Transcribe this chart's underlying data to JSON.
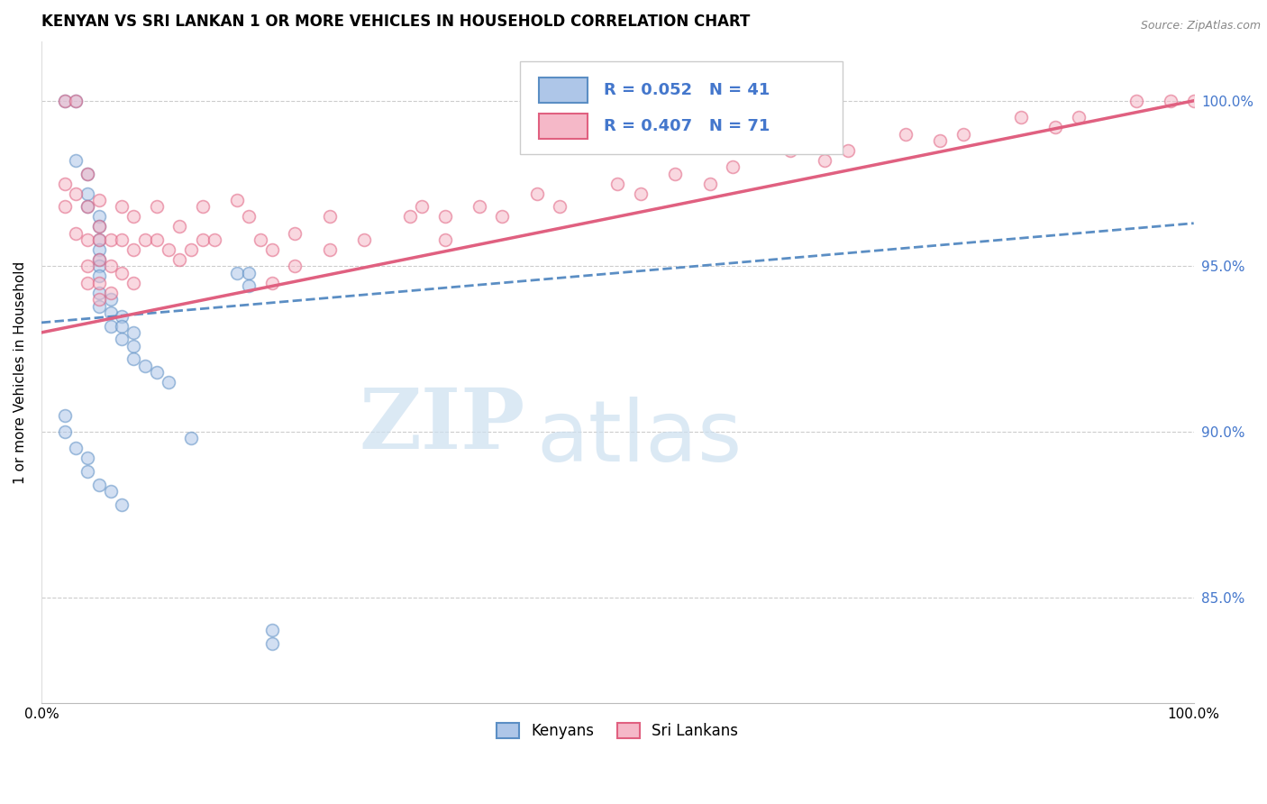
{
  "title": "KENYAN VS SRI LANKAN 1 OR MORE VEHICLES IN HOUSEHOLD CORRELATION CHART",
  "source": "Source: ZipAtlas.com",
  "ylabel": "1 or more Vehicles in Household",
  "xlim": [
    0.0,
    1.0
  ],
  "ylim": [
    0.818,
    1.018
  ],
  "yticks": [
    0.85,
    0.9,
    0.95,
    1.0
  ],
  "ytick_labels": [
    "85.0%",
    "90.0%",
    "95.0%",
    "100.0%"
  ],
  "xtick_labels": [
    "0.0%",
    "100.0%"
  ],
  "legend_r_blue": "R = 0.052",
  "legend_n_blue": "N = 41",
  "legend_r_pink": "R = 0.407",
  "legend_n_pink": "N = 71",
  "watermark_zip": "ZIP",
  "watermark_atlas": "atlas",
  "blue_color": "#aec6e8",
  "pink_color": "#f5b8c8",
  "blue_edge_color": "#5b8ec4",
  "pink_edge_color": "#e06080",
  "blue_line_color": "#5b8ec4",
  "pink_line_color": "#e06080",
  "blue_scatter_x": [
    0.02,
    0.03,
    0.03,
    0.04,
    0.04,
    0.04,
    0.05,
    0.05,
    0.05,
    0.05,
    0.05,
    0.05,
    0.05,
    0.05,
    0.05,
    0.06,
    0.06,
    0.06,
    0.07,
    0.07,
    0.07,
    0.08,
    0.08,
    0.08,
    0.09,
    0.1,
    0.11,
    0.13,
    0.17,
    0.02,
    0.02,
    0.03,
    0.04,
    0.04,
    0.05,
    0.06,
    0.07,
    0.18,
    0.18,
    0.2,
    0.2
  ],
  "blue_scatter_y": [
    1.0,
    1.0,
    0.982,
    0.978,
    0.972,
    0.968,
    0.965,
    0.962,
    0.958,
    0.955,
    0.952,
    0.95,
    0.947,
    0.942,
    0.938,
    0.94,
    0.936,
    0.932,
    0.935,
    0.932,
    0.928,
    0.93,
    0.926,
    0.922,
    0.92,
    0.918,
    0.915,
    0.898,
    0.948,
    0.905,
    0.9,
    0.895,
    0.892,
    0.888,
    0.884,
    0.882,
    0.878,
    0.948,
    0.944,
    0.84,
    0.836
  ],
  "pink_scatter_x": [
    0.02,
    0.02,
    0.02,
    0.03,
    0.03,
    0.03,
    0.04,
    0.04,
    0.04,
    0.04,
    0.04,
    0.05,
    0.05,
    0.05,
    0.05,
    0.05,
    0.05,
    0.06,
    0.06,
    0.06,
    0.07,
    0.07,
    0.07,
    0.08,
    0.08,
    0.08,
    0.09,
    0.1,
    0.1,
    0.11,
    0.12,
    0.12,
    0.13,
    0.14,
    0.14,
    0.15,
    0.17,
    0.18,
    0.19,
    0.2,
    0.2,
    0.22,
    0.22,
    0.25,
    0.25,
    0.28,
    0.32,
    0.33,
    0.35,
    0.35,
    0.38,
    0.4,
    0.43,
    0.45,
    0.5,
    0.52,
    0.55,
    0.58,
    0.6,
    0.65,
    0.68,
    0.7,
    0.75,
    0.78,
    0.8,
    0.85,
    0.88,
    0.9,
    0.95,
    0.98,
    1.0
  ],
  "pink_scatter_y": [
    1.0,
    0.975,
    0.968,
    1.0,
    0.972,
    0.96,
    0.978,
    0.968,
    0.958,
    0.95,
    0.945,
    0.97,
    0.962,
    0.958,
    0.952,
    0.945,
    0.94,
    0.958,
    0.95,
    0.942,
    0.968,
    0.958,
    0.948,
    0.965,
    0.955,
    0.945,
    0.958,
    0.968,
    0.958,
    0.955,
    0.962,
    0.952,
    0.955,
    0.968,
    0.958,
    0.958,
    0.97,
    0.965,
    0.958,
    0.955,
    0.945,
    0.96,
    0.95,
    0.965,
    0.955,
    0.958,
    0.965,
    0.968,
    0.965,
    0.958,
    0.968,
    0.965,
    0.972,
    0.968,
    0.975,
    0.972,
    0.978,
    0.975,
    0.98,
    0.985,
    0.982,
    0.985,
    0.99,
    0.988,
    0.99,
    0.995,
    0.992,
    0.995,
    1.0,
    1.0,
    1.0
  ],
  "blue_trend_x": [
    0.0,
    1.0
  ],
  "blue_trend_y": [
    0.933,
    0.963
  ],
  "pink_trend_x": [
    0.0,
    1.0
  ],
  "pink_trend_y": [
    0.93,
    1.0
  ],
  "background_color": "#ffffff",
  "grid_color": "#cccccc",
  "title_fontsize": 12,
  "label_fontsize": 11,
  "tick_fontsize": 11,
  "scatter_size": 100,
  "scatter_alpha": 0.55,
  "scatter_linewidth": 1.2
}
